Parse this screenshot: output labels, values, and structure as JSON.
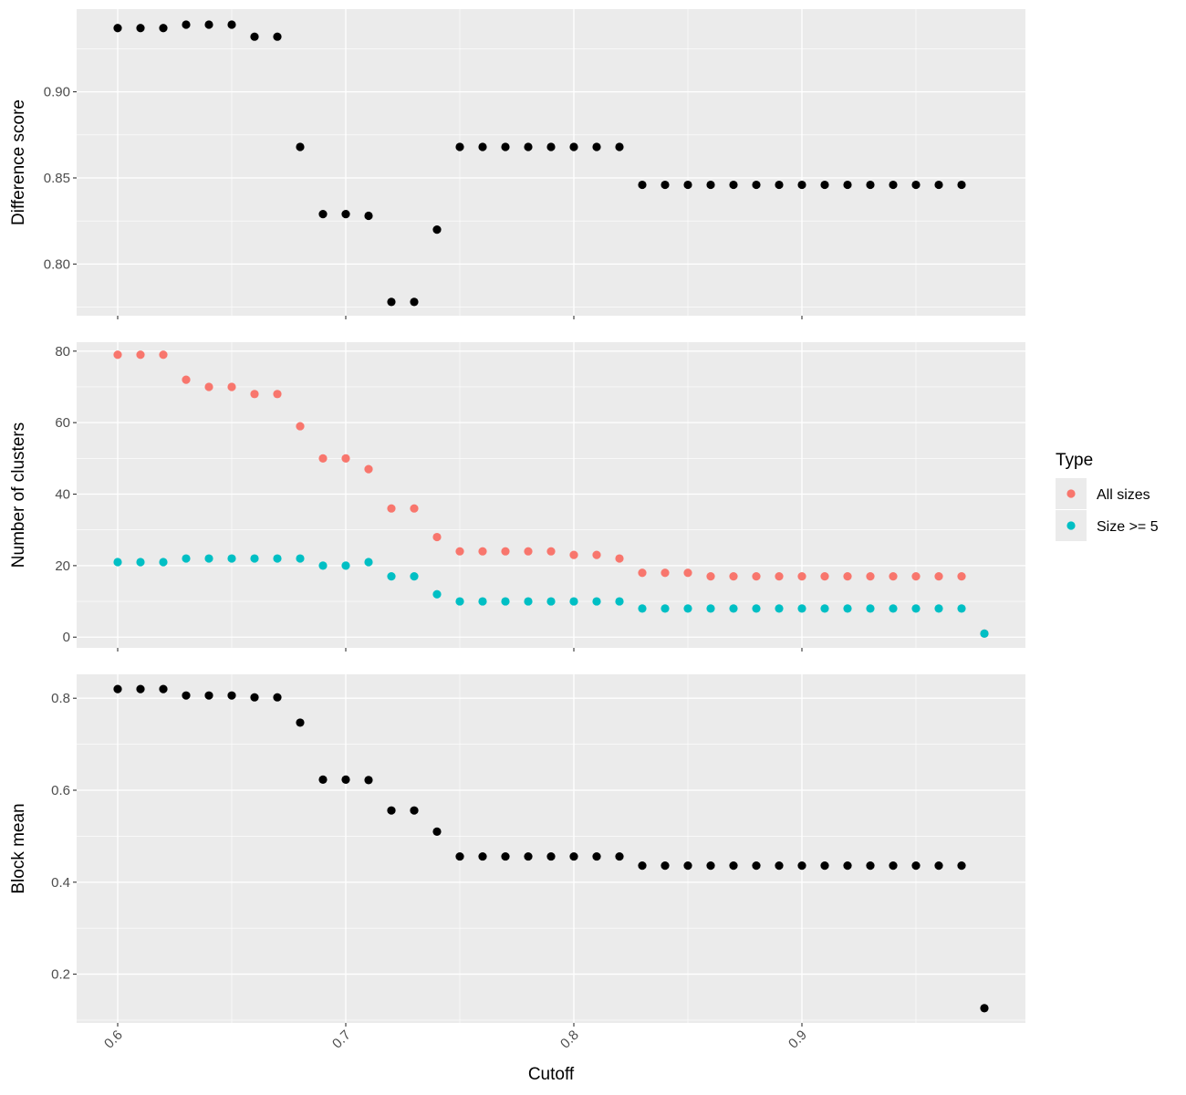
{
  "chart_data": [
    {
      "type": "scatter",
      "ylabel": "Difference score",
      "xlim": [
        0.582,
        0.998
      ],
      "ylim": [
        0.77,
        0.948
      ],
      "yticks": [
        "0.80",
        "0.85",
        "0.90"
      ],
      "xticks": [
        "0.6",
        "0.7",
        "0.8",
        "0.9"
      ],
      "show_x_tick_labels": false,
      "series": [
        {
          "color": "#000000",
          "x": [
            0.6,
            0.61,
            0.62,
            0.63,
            0.64,
            0.65,
            0.66,
            0.67,
            0.68,
            0.69,
            0.7,
            0.71,
            0.72,
            0.73,
            0.74,
            0.75,
            0.76,
            0.77,
            0.78,
            0.79,
            0.8,
            0.81,
            0.82,
            0.83,
            0.84,
            0.85,
            0.86,
            0.87,
            0.88,
            0.89,
            0.9,
            0.91,
            0.92,
            0.93,
            0.94,
            0.95,
            0.96,
            0.97
          ],
          "y": [
            0.937,
            0.937,
            0.937,
            0.939,
            0.939,
            0.939,
            0.932,
            0.932,
            0.868,
            0.829,
            0.829,
            0.828,
            0.778,
            0.778,
            0.82,
            0.868,
            0.868,
            0.868,
            0.868,
            0.868,
            0.868,
            0.868,
            0.868,
            0.846,
            0.846,
            0.846,
            0.846,
            0.846,
            0.846,
            0.846,
            0.846,
            0.846,
            0.846,
            0.846,
            0.846,
            0.846,
            0.846,
            0.846
          ]
        }
      ]
    },
    {
      "type": "scatter",
      "ylabel": "Number of clusters",
      "xlim": [
        0.582,
        0.998
      ],
      "ylim": [
        -3,
        82.5
      ],
      "yticks": [
        "0",
        "20",
        "40",
        "60",
        "80"
      ],
      "xticks": [
        "0.6",
        "0.7",
        "0.8",
        "0.9"
      ],
      "show_x_tick_labels": false,
      "legend": {
        "title": "Type",
        "placement": "right",
        "items": [
          {
            "label": "All sizes",
            "color": "#F8766D"
          },
          {
            "label": "Size >= 5",
            "color": "#00BFC4"
          }
        ]
      },
      "series": [
        {
          "name": "All sizes",
          "color": "#F8766D",
          "x": [
            0.6,
            0.61,
            0.62,
            0.63,
            0.64,
            0.65,
            0.66,
            0.67,
            0.68,
            0.69,
            0.7,
            0.71,
            0.72,
            0.73,
            0.74,
            0.75,
            0.76,
            0.77,
            0.78,
            0.79,
            0.8,
            0.81,
            0.82,
            0.83,
            0.84,
            0.85,
            0.86,
            0.87,
            0.88,
            0.89,
            0.9,
            0.91,
            0.92,
            0.93,
            0.94,
            0.95,
            0.96,
            0.97,
            0.98
          ],
          "y": [
            79,
            79,
            79,
            72,
            70,
            70,
            68,
            68,
            59,
            50,
            50,
            47,
            36,
            36,
            28,
            24,
            24,
            24,
            24,
            24,
            23,
            23,
            22,
            18,
            18,
            18,
            17,
            17,
            17,
            17,
            17,
            17,
            17,
            17,
            17,
            17,
            17,
            17,
            1
          ]
        },
        {
          "name": "Size >= 5",
          "color": "#00BFC4",
          "x": [
            0.6,
            0.61,
            0.62,
            0.63,
            0.64,
            0.65,
            0.66,
            0.67,
            0.68,
            0.69,
            0.7,
            0.71,
            0.72,
            0.73,
            0.74,
            0.75,
            0.76,
            0.77,
            0.78,
            0.79,
            0.8,
            0.81,
            0.82,
            0.83,
            0.84,
            0.85,
            0.86,
            0.87,
            0.88,
            0.89,
            0.9,
            0.91,
            0.92,
            0.93,
            0.94,
            0.95,
            0.96,
            0.97,
            0.98
          ],
          "y": [
            21,
            21,
            21,
            22,
            22,
            22,
            22,
            22,
            22,
            20,
            20,
            21,
            17,
            17,
            12,
            10,
            10,
            10,
            10,
            10,
            10,
            10,
            10,
            8,
            8,
            8,
            8,
            8,
            8,
            8,
            8,
            8,
            8,
            8,
            8,
            8,
            8,
            8,
            1
          ]
        }
      ]
    },
    {
      "type": "scatter",
      "ylabel": "Block mean",
      "xlabel": "Cutoff",
      "xlim": [
        0.582,
        0.998
      ],
      "ylim": [
        0.094,
        0.852
      ],
      "yticks": [
        "0.2",
        "0.4",
        "0.6",
        "0.8"
      ],
      "xticks": [
        "0.6",
        "0.7",
        "0.8",
        "0.9"
      ],
      "show_x_tick_labels": true,
      "series": [
        {
          "color": "#000000",
          "x": [
            0.6,
            0.61,
            0.62,
            0.63,
            0.64,
            0.65,
            0.66,
            0.67,
            0.68,
            0.69,
            0.7,
            0.71,
            0.72,
            0.73,
            0.74,
            0.75,
            0.76,
            0.77,
            0.78,
            0.79,
            0.8,
            0.81,
            0.82,
            0.83,
            0.84,
            0.85,
            0.86,
            0.87,
            0.88,
            0.89,
            0.9,
            0.91,
            0.92,
            0.93,
            0.94,
            0.95,
            0.96,
            0.97,
            0.98
          ],
          "y": [
            0.82,
            0.82,
            0.82,
            0.806,
            0.806,
            0.806,
            0.802,
            0.802,
            0.747,
            0.623,
            0.623,
            0.622,
            0.556,
            0.556,
            0.51,
            0.456,
            0.456,
            0.456,
            0.456,
            0.456,
            0.456,
            0.456,
            0.456,
            0.436,
            0.436,
            0.436,
            0.436,
            0.436,
            0.436,
            0.436,
            0.436,
            0.436,
            0.436,
            0.436,
            0.436,
            0.436,
            0.436,
            0.436,
            0.126
          ]
        }
      ]
    }
  ]
}
